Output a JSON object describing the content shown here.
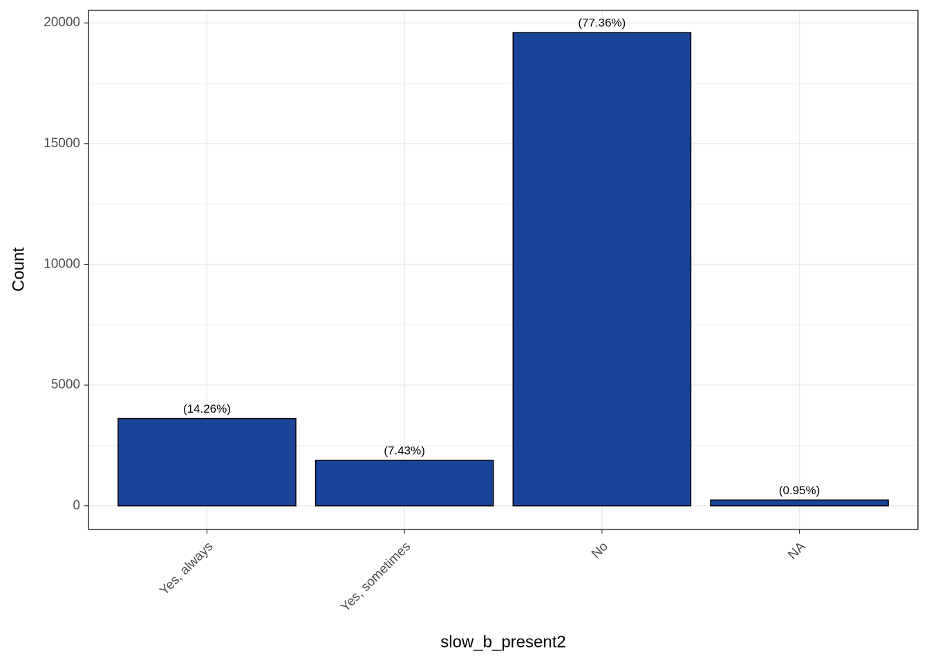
{
  "chart_data": {
    "type": "bar",
    "x_label": "slow_b_present2",
    "y_label": "Count",
    "categories": [
      "Yes, always",
      "Yes, sometimes",
      "No",
      "NA"
    ],
    "values": [
      3613,
      1882,
      19600,
      241
    ],
    "bar_labels": [
      "(14.26%)",
      "(7.43%)",
      "(77.36%)",
      "(0.95%)"
    ],
    "color": "#1a4499",
    "ylim": [
      -980,
      20520
    ],
    "yticks": [
      0,
      5000,
      10000,
      15000,
      20000
    ],
    "grid": true
  }
}
